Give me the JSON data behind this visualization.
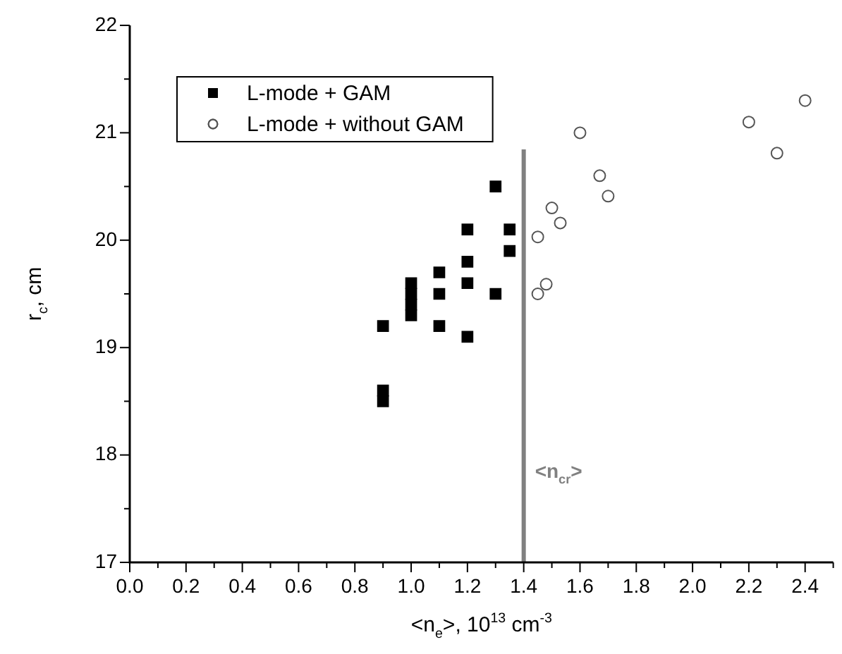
{
  "chart_data": {
    "type": "scatter",
    "xlabel": "<n$_{e}$>, 10$^{13}$ cm$^{-3}$",
    "ylabel": "r$_{c}$, cm",
    "xlim": [
      0,
      2.5
    ],
    "xticks": [
      {
        "value": 0,
        "label": "0.0"
      },
      0.2,
      0.4,
      0.6,
      0.8,
      {
        "value": 1,
        "label": "1.0"
      },
      1.2,
      1.4,
      1.6,
      1.8,
      {
        "value": 2,
        "label": "2.0"
      },
      2.2,
      2.4
    ],
    "ylim": [
      17,
      22
    ],
    "yticks": [
      17,
      18,
      19,
      20,
      21,
      22
    ],
    "grid": false,
    "legend": "top left",
    "series": [
      {
        "name": "L-mode + GAM",
        "color": "#000000",
        "marker": "square",
        "x": [
          0.9,
          0.9,
          0.9,
          1.0,
          1.0,
          1.0,
          1.0,
          1.1,
          1.1,
          1.1,
          1.2,
          1.2,
          1.2,
          1.2,
          1.3,
          1.3,
          1.35,
          1.35
        ],
        "values": [
          19.2,
          18.6,
          18.5,
          19.6,
          19.5,
          19.4,
          19.3,
          19.7,
          19.5,
          19.2,
          20.1,
          19.8,
          19.6,
          19.1,
          20.5,
          19.5,
          20.1,
          19.9
        ]
      },
      {
        "name": "L-mode + without GAM",
        "color": "#555555",
        "marker": "circle",
        "x": [
          1.45,
          1.45,
          1.48,
          1.5,
          1.53,
          1.6,
          1.67,
          1.7,
          2.2,
          2.3,
          2.4
        ],
        "values": [
          20.03,
          19.5,
          19.59,
          20.3,
          20.16,
          21.0,
          20.6,
          20.41,
          21.1,
          20.81,
          21.3
        ]
      }
    ],
    "ref_lines": [
      {
        "axis": "x",
        "value": 1.4,
        "label": "<n$_{cr}$>",
        "color": "#808080"
      }
    ]
  }
}
